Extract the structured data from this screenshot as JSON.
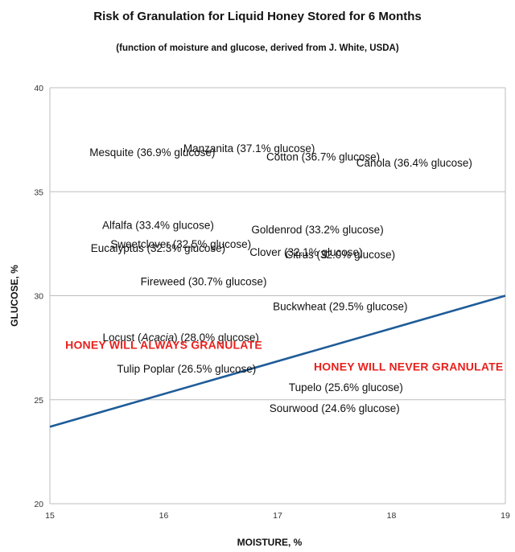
{
  "chart_data": {
    "type": "scatter",
    "title": "Risk of Granulation for Liquid Honey Stored for 6 Months",
    "subtitle": "(function of moisture and glucose, derived from J. White, USDA)",
    "xlabel": "MOISTURE, %",
    "ylabel": "GLUCOSE, %",
    "xlim": [
      15,
      19
    ],
    "ylim": [
      20,
      40
    ],
    "xticks": [
      "15",
      "16",
      "17",
      "18",
      "19"
    ],
    "yticks": [
      "20",
      "25",
      "30",
      "35",
      "40"
    ],
    "grid": true,
    "boundary_line": {
      "x": [
        15,
        19
      ],
      "y": [
        23.7,
        30.0
      ],
      "color": "#1f5c99"
    },
    "regions": {
      "above": "HONEY WILL ALWAYS GRANULATE",
      "below": "HONEY WILL NEVER GRANULATE",
      "color": "#e8211e"
    },
    "points": [
      {
        "label": "Manzanita (37.1% glucose)",
        "x": 16.75,
        "y": 37.1
      },
      {
        "label": "Mesquite (36.9% glucose)",
        "x": 15.9,
        "y": 36.9
      },
      {
        "label": "Cotton (36.7% glucose)",
        "x": 17.4,
        "y": 36.7
      },
      {
        "label": "Canola (36.4% glucose)",
        "x": 18.2,
        "y": 36.4
      },
      {
        "label": "Alfalfa (33.4% glucose)",
        "x": 15.95,
        "y": 33.4
      },
      {
        "label": "Goldenrod (33.2% glucose)",
        "x": 17.35,
        "y": 33.2
      },
      {
        "label": "Sweetclover (32.5% glucose)",
        "x": 16.15,
        "y": 32.5
      },
      {
        "label": "Eucalyptus (32.3% glucose)",
        "x": 15.95,
        "y": 32.3
      },
      {
        "label": "Clover (32.1% glucose)",
        "x": 17.25,
        "y": 32.1
      },
      {
        "label": "Citrus (32.0% glucose)",
        "x": 17.55,
        "y": 32.0
      },
      {
        "label": "Fireweed (30.7% glucose)",
        "x": 16.35,
        "y": 30.7
      },
      {
        "label": "Buckwheat (29.5% glucose)",
        "x": 17.55,
        "y": 29.5
      },
      {
        "label": "Locust (Acacia) (28.0% glucose)",
        "label_parts": [
          "Locust (",
          "Acacia",
          ") (28.0% glucose)"
        ],
        "x": 16.15,
        "y": 28.0
      },
      {
        "label": "Tulip Poplar (26.5% glucose)",
        "x": 16.2,
        "y": 26.5
      },
      {
        "label": "Tupelo (25.6% glucose)",
        "x": 17.6,
        "y": 25.6
      },
      {
        "label": "Sourwood (24.6% glucose)",
        "x": 17.5,
        "y": 24.6
      }
    ]
  }
}
